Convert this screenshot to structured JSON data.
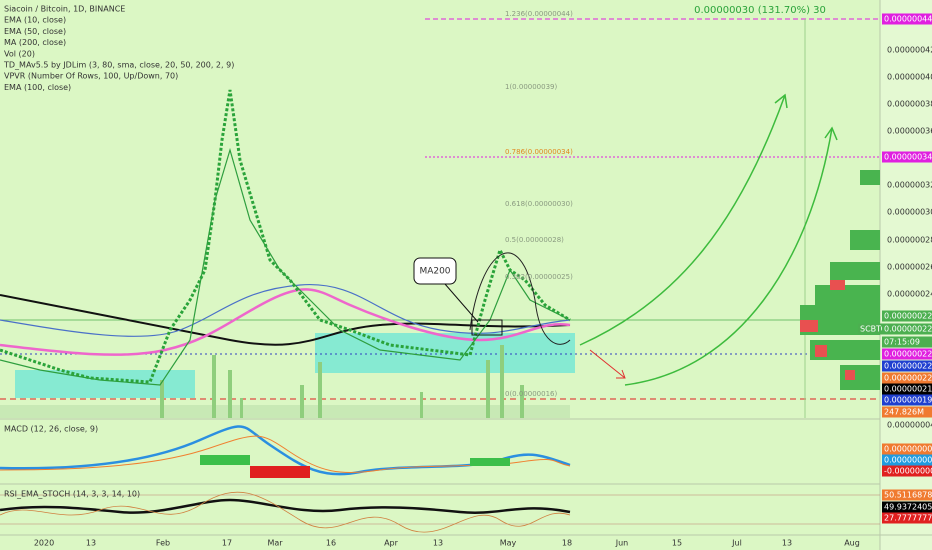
{
  "legend": [
    "Siacoin / Bitcoin, 1D, BINANCE",
    "EMA (10, close)",
    "EMA (50, close)",
    "MA (200, close)",
    "Vol (20)",
    "TD_MAv5.5 by JDLim (3, 80, sma, close, 20, 50, 200, 2, 9)",
    "VPVR (Number Of Rows, 100, Up/Down, 70)",
    "EMA (100, close)"
  ],
  "measure_label": "0.00000030 (131.70%) 30",
  "fib_labels": [
    "1.236(0.00000044)",
    "1(0.00000039)",
    "0.786(0.00000034)",
    "0.618(0.00000030)",
    "0.5(0.00000028)",
    "0.382(0.00000025)",
    "0(0.00000016)"
  ],
  "annotation": "MA200",
  "price_axis": [
    "0.00000042",
    "0.00000040",
    "0.00000038",
    "0.00000036",
    "0.00000032",
    "0.00000030",
    "0.00000028",
    "0.00000026",
    "0.00000024"
  ],
  "price_tags": [
    "0.00000044",
    "0.00000034",
    "0.00000022",
    "SCBTC",
    "0.00000022",
    "07:15:09",
    "0.00000022",
    "0.00000022",
    "0.00000022",
    "0.00000021",
    "0.00000019",
    "247.826M"
  ],
  "macd": {
    "title": "MACD (12, 26, close, 9)",
    "axis": "0.00000004",
    "tags": [
      "0.00000000",
      "0.00000000",
      "-0.00000000"
    ]
  },
  "rsi": {
    "title": "RSI_EMA_STOCH (14, 3, 3, 14, 10)",
    "tags": [
      "50.51168789",
      "49.93724056",
      "27.77777778"
    ]
  },
  "time_axis": [
    "2020",
    "13",
    "Feb",
    "17",
    "Mar",
    "16",
    "Apr",
    "13",
    "May",
    "18",
    "Jun",
    "15",
    "Jul",
    "13",
    "Aug"
  ]
}
